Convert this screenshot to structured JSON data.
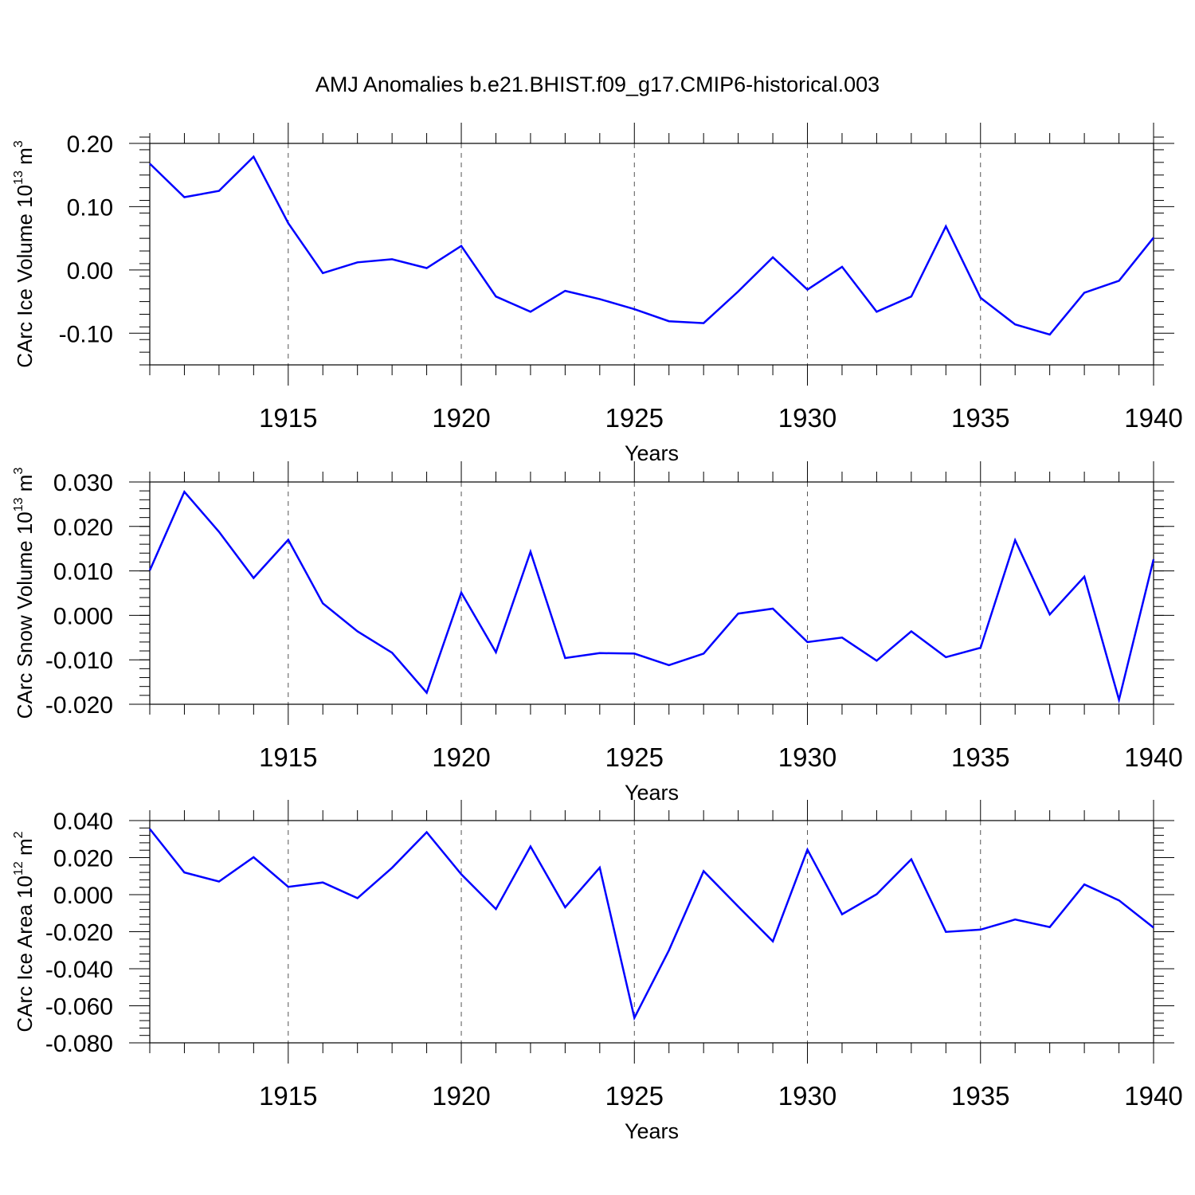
{
  "chart_data": {
    "title": "AMJ Anomalies b.e21.BHIST.f09_g17.CMIP6-historical.003",
    "line_color": "#0000ff",
    "grid": "dashed vertical lines at major x ticks",
    "panels": [
      {
        "type": "line",
        "ylabel_main": "CArc Ice Volume 10",
        "ylabel_exp": "13",
        "ylabel_unit": "m",
        "ylabel_unit_exp": "3",
        "xlabel": "Years",
        "xlim": [
          1911,
          1940
        ],
        "ylim": [
          -0.15,
          0.2
        ],
        "yticks": [
          0.2,
          0.1,
          0.0,
          -0.1
        ],
        "yticklabels": [
          "0.20",
          "0.10",
          "0.00",
          "-0.10"
        ],
        "yminor_step": 0.02,
        "xticks": [
          1915,
          1920,
          1925,
          1930,
          1935,
          1940
        ],
        "xticklabels": [
          "1915",
          "1920",
          "1925",
          "1930",
          "1935",
          "1940"
        ],
        "series": [
          {
            "x": [
              1911,
              1912,
              1913,
              1914,
              1915,
              1916,
              1917,
              1918,
              1919,
              1920,
              1921,
              1922,
              1923,
              1924,
              1925,
              1926,
              1927,
              1928,
              1929,
              1930,
              1931,
              1932,
              1933,
              1934,
              1935,
              1936,
              1937,
              1938,
              1939,
              1940
            ],
            "y": [
              0.168,
              0.115,
              0.125,
              0.179,
              0.074,
              -0.005,
              0.012,
              0.017,
              0.003,
              0.038,
              -0.042,
              -0.066,
              -0.033,
              -0.046,
              -0.062,
              -0.081,
              -0.084,
              -0.034,
              0.02,
              -0.031,
              0.005,
              -0.066,
              -0.042,
              0.069,
              -0.044,
              -0.086,
              -0.102,
              -0.036,
              -0.017,
              0.051
            ]
          }
        ]
      },
      {
        "type": "line",
        "ylabel_main": "CArc Snow Volume 10",
        "ylabel_exp": "13",
        "ylabel_unit": "m",
        "ylabel_unit_exp": "3",
        "xlabel": "Years",
        "xlim": [
          1911,
          1940
        ],
        "ylim": [
          -0.02,
          0.03
        ],
        "yticks": [
          0.03,
          0.02,
          0.01,
          0.0,
          -0.01,
          -0.02
        ],
        "yticklabels": [
          "0.030",
          "0.020",
          "0.010",
          "0.000",
          "-0.010",
          "-0.020"
        ],
        "yminor_step": 0.002,
        "xticks": [
          1915,
          1920,
          1925,
          1930,
          1935,
          1940
        ],
        "xticklabels": [
          "1915",
          "1920",
          "1925",
          "1930",
          "1935",
          "1940"
        ],
        "series": [
          {
            "x": [
              1911,
              1912,
              1913,
              1914,
              1915,
              1916,
              1917,
              1918,
              1919,
              1920,
              1921,
              1922,
              1923,
              1924,
              1925,
              1926,
              1927,
              1928,
              1929,
              1930,
              1931,
              1932,
              1933,
              1934,
              1935,
              1936,
              1937,
              1938,
              1939,
              1940
            ],
            "y": [
              0.0101,
              0.0278,
              0.0188,
              0.0084,
              0.017,
              0.0027,
              -0.0036,
              -0.0084,
              -0.0174,
              0.0051,
              -0.0083,
              0.0143,
              -0.0096,
              -0.0085,
              -0.0086,
              -0.0112,
              -0.0086,
              0.0004,
              0.0015,
              -0.006,
              -0.005,
              -0.0102,
              -0.0036,
              -0.0094,
              -0.0073,
              0.0169,
              0.0002,
              0.0087,
              -0.019,
              0.0126
            ]
          }
        ]
      },
      {
        "type": "line",
        "ylabel_main": "CArc Ice Area 10",
        "ylabel_exp": "12",
        "ylabel_unit": "m",
        "ylabel_unit_exp": "2",
        "xlabel": "Years",
        "xlim": [
          1911,
          1940
        ],
        "ylim": [
          -0.08,
          0.04
        ],
        "yticks": [
          0.04,
          0.02,
          0.0,
          -0.02,
          -0.04,
          -0.06,
          -0.08
        ],
        "yticklabels": [
          "0.040",
          "0.020",
          "0.000",
          "-0.020",
          "-0.040",
          "-0.060",
          "-0.080"
        ],
        "yminor_step": 0.004,
        "xticks": [
          1915,
          1920,
          1925,
          1930,
          1935,
          1940
        ],
        "xticklabels": [
          "1915",
          "1920",
          "1925",
          "1930",
          "1935",
          "1940"
        ],
        "series": [
          {
            "x": [
              1911,
              1912,
              1913,
              1914,
              1915,
              1916,
              1917,
              1918,
              1919,
              1920,
              1921,
              1922,
              1923,
              1924,
              1925,
              1926,
              1927,
              1928,
              1929,
              1930,
              1931,
              1932,
              1933,
              1934,
              1935,
              1936,
              1937,
              1938,
              1939,
              1940
            ],
            "y": [
              0.0355,
              0.012,
              0.0071,
              0.0202,
              0.0042,
              0.0066,
              -0.0019,
              0.0145,
              0.0337,
              0.011,
              -0.0078,
              0.026,
              -0.0068,
              0.0146,
              -0.0665,
              -0.03,
              0.0127,
              -0.0064,
              -0.0252,
              0.0243,
              -0.0106,
              0.0002,
              0.0191,
              -0.0201,
              -0.0189,
              -0.0134,
              -0.0175,
              0.0055,
              -0.0031,
              -0.0178
            ]
          }
        ]
      }
    ]
  }
}
